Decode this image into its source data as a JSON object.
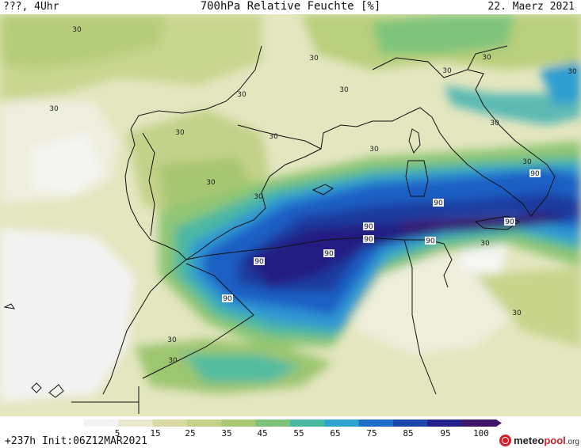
{
  "header": {
    "left": "???, 4Uhr",
    "title": "700hPa Relative Feuchte [%]",
    "date": "22. Maerz 2021"
  },
  "colors": {
    "background_land_dry": "#ecebc9",
    "very_dry": "#f3f3f3",
    "dry": "#e9ecd6",
    "light_green": "#c8d598",
    "green": "#a8c56a",
    "mid_green": "#74c36e",
    "teal": "#3fb6a4",
    "cyan": "#2e9fd3",
    "blue": "#1c63c8",
    "deep_blue": "#1a3fa7",
    "navy": "#201c80",
    "purple": "#3a1468",
    "coastline": "#111111"
  },
  "colorbar": {
    "ticks": [
      "5",
      "15",
      "25",
      "35",
      "45",
      "55",
      "65",
      "75",
      "85",
      "95",
      "100"
    ],
    "colors": [
      "#f4f4f4",
      "#eae9cf",
      "#d8d9a5",
      "#c4d189",
      "#a9c873",
      "#7cc27a",
      "#48b8a0",
      "#2fa3d0",
      "#1f6cc9",
      "#1d45ac",
      "#23208a",
      "#3e1466"
    ]
  },
  "contour_labels": [
    "30",
    "30",
    "30",
    "30",
    "30",
    "30",
    "30",
    "30",
    "30",
    "30",
    "30",
    "30",
    "30",
    "30",
    "30",
    "30",
    "30",
    "30",
    "30",
    "90",
    "90",
    "90",
    "90",
    "90",
    "90",
    "90",
    "90",
    "90"
  ],
  "footer": {
    "run_info": "+237h Init:06Z12MAR2021",
    "logo_main": "meteo",
    "logo_accent": "pool",
    "logo_tld": ".org"
  }
}
